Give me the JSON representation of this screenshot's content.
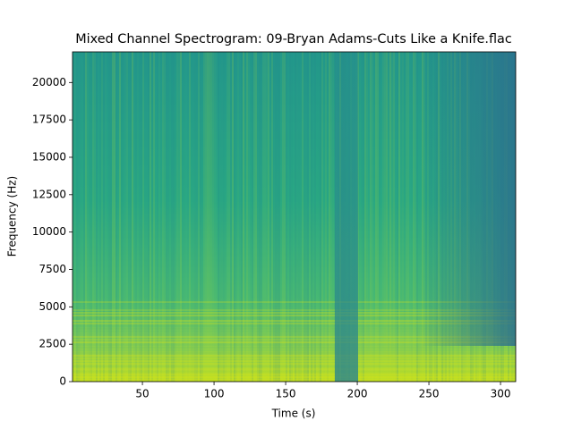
{
  "chart_data": {
    "type": "spectrogram",
    "title": "Mixed Channel Spectrogram: 09-Bryan Adams-Cuts Like a Knife.flac",
    "x_label": "Time (s)",
    "y_label": "Frequency (Hz)",
    "xlim": [
      1.2,
      310.6
    ],
    "ylim": [
      0,
      22050
    ],
    "xticks": [
      50,
      100,
      150,
      200,
      250,
      300
    ],
    "yticks": [
      0,
      2500,
      5000,
      7500,
      10000,
      12500,
      15000,
      17500,
      20000
    ],
    "colormap": "viridis"
  }
}
